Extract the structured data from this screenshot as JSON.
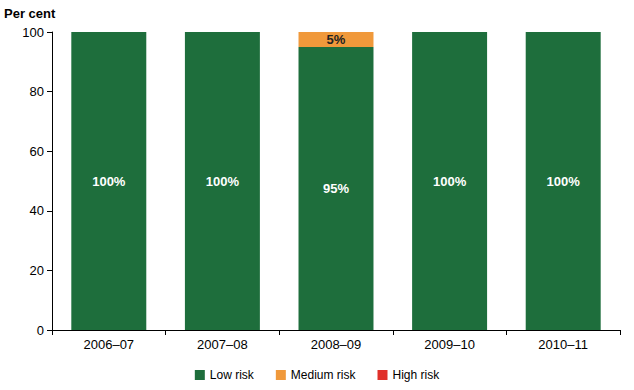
{
  "chart_data": {
    "type": "bar",
    "stacked": true,
    "ylabel": "Per cent",
    "categories": [
      "2006–07",
      "2007–08",
      "2008–09",
      "2009–10",
      "2010–11"
    ],
    "series": [
      {
        "name": "Low risk",
        "color": "#1e6e3c",
        "values": [
          100,
          100,
          95,
          100,
          100
        ],
        "value_labels": [
          "100%",
          "100%",
          "95%",
          "100%",
          "100%"
        ]
      },
      {
        "name": "Medium risk",
        "color": "#f0993b",
        "values": [
          0,
          0,
          5,
          0,
          0
        ],
        "value_labels": [
          null,
          null,
          "5%",
          null,
          null
        ]
      },
      {
        "name": "High risk",
        "color": "#e0302a",
        "values": [
          0,
          0,
          0,
          0,
          0
        ],
        "value_labels": [
          null,
          null,
          null,
          null,
          null
        ]
      }
    ],
    "ylim": [
      0,
      100
    ],
    "yticks": [
      0,
      20,
      40,
      60,
      80,
      100
    ],
    "grid": false,
    "legend": "bottom",
    "data_labels": true
  }
}
